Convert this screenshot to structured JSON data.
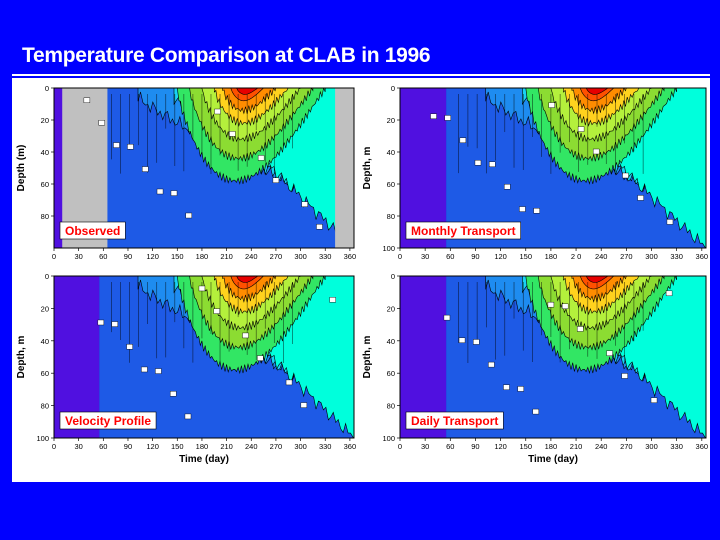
{
  "slide_title": "Temperature Comparison at CLAB in 1996",
  "colors": {
    "slide_background": "#0000ff",
    "figure_background": "#ffffff",
    "panel_label_text": "#ff0000",
    "missing_data": "#c0c0c0",
    "contour_levels": [
      "#2a00cc",
      "#5010e0",
      "#1e5ae6",
      "#1e8cf0",
      "#19d2f5",
      "#00ffdc",
      "#32e664",
      "#8cdc32",
      "#b4f03c",
      "#ffd21e",
      "#ff8c00",
      "#ff5000",
      "#e60000"
    ]
  },
  "chart_data": [
    {
      "type": "heatmap",
      "panel_label": "Observed",
      "ylabel": "Depth (m)",
      "xlabel": "",
      "x_ticks": [
        "0",
        "30",
        "60",
        "90",
        "120",
        "150",
        "180",
        "210",
        "240",
        "270",
        "300",
        "330",
        "360"
      ],
      "y_ticks": [
        "0",
        "20",
        "40",
        "60",
        "80"
      ],
      "xlim": [
        0,
        365
      ],
      "ylim": [
        0,
        100
      ],
      "missing_periods": [
        [
          10,
          65
        ],
        [
          342,
          365
        ]
      ],
      "grid": false
    },
    {
      "type": "heatmap",
      "panel_label": "Monthly Transport",
      "ylabel": "Depth, m",
      "xlabel": "",
      "x_ticks": [
        "0",
        "30",
        "60",
        "90",
        "120",
        "150",
        "180",
        "2 0",
        "240",
        "270",
        "300",
        "330",
        "360"
      ],
      "y_ticks": [
        "0",
        "20",
        "40",
        "60",
        "80",
        "100"
      ],
      "xlim": [
        0,
        365
      ],
      "ylim": [
        0,
        100
      ],
      "grid": false
    },
    {
      "type": "heatmap",
      "panel_label": "Velocity Profile",
      "ylabel": "Depth, m",
      "xlabel": "Time (day)",
      "x_ticks": [
        "0",
        "30",
        "60",
        "90",
        "120",
        "150",
        "180",
        "210",
        "240",
        "270",
        "300",
        "330",
        "360"
      ],
      "y_ticks": [
        "0",
        "20",
        "40",
        "60",
        "80",
        "100"
      ],
      "xlim": [
        0,
        365
      ],
      "ylim": [
        0,
        100
      ],
      "grid": false
    },
    {
      "type": "heatmap",
      "panel_label": "Daily Transport",
      "ylabel": "Depth, m",
      "xlabel": "Time (day)",
      "x_ticks": [
        "0",
        "30",
        "60",
        "90",
        "120",
        "150",
        "180",
        "210",
        "240",
        "270",
        "300",
        "330",
        "360"
      ],
      "y_ticks": [
        "0",
        "20",
        "40",
        "60",
        "80",
        "100"
      ],
      "xlim": [
        0,
        365
      ],
      "ylim": [
        0,
        100
      ],
      "grid": false
    }
  ]
}
